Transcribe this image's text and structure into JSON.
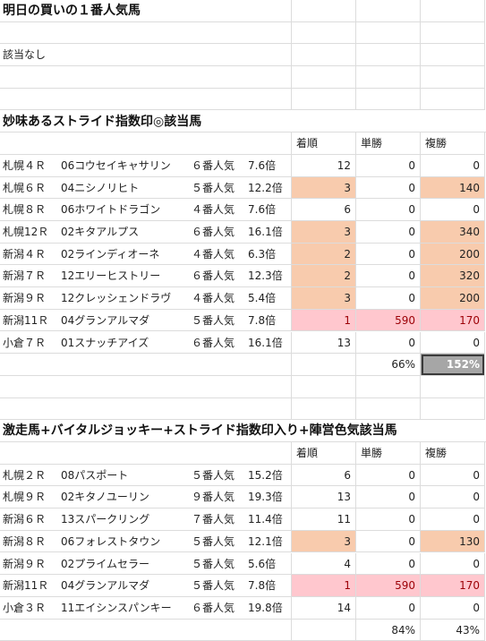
{
  "header": {
    "title": "明日の買いの１番人気馬",
    "no_match": "該当なし"
  },
  "section1": {
    "title": "妙味あるストライド指数印◎該当馬",
    "columns": [
      "着順",
      "単勝",
      "複勝"
    ],
    "rows": [
      {
        "venue": "札幌４Ｒ",
        "horse": "06コウセイキャサリン",
        "pop": "６番人気",
        "odds": "7.6倍",
        "rank": "12",
        "win": "0",
        "place": "0",
        "hl": [
          "",
          "",
          ""
        ]
      },
      {
        "venue": "札幌６Ｒ",
        "horse": "04ニシノリヒト",
        "pop": "５番人気",
        "odds": "12.2倍",
        "rank": "3",
        "win": "0",
        "place": "140",
        "hl": [
          "orange",
          "",
          "orange"
        ]
      },
      {
        "venue": "札幌８Ｒ",
        "horse": "06ホワイトドラゴン",
        "pop": "４番人気",
        "odds": "7.6倍",
        "rank": "6",
        "win": "0",
        "place": "0",
        "hl": [
          "",
          "",
          ""
        ]
      },
      {
        "venue": "札幌12Ｒ",
        "horse": "02キタアルプス",
        "pop": "６番人気",
        "odds": "16.1倍",
        "rank": "3",
        "win": "0",
        "place": "340",
        "hl": [
          "orange",
          "",
          "orange"
        ]
      },
      {
        "venue": "新潟４Ｒ",
        "horse": "02ラインディオーネ",
        "pop": "４番人気",
        "odds": "6.3倍",
        "rank": "2",
        "win": "0",
        "place": "200",
        "hl": [
          "orange",
          "",
          "orange"
        ]
      },
      {
        "venue": "新潟７Ｒ",
        "horse": "12エリーヒストリー",
        "pop": "６番人気",
        "odds": "12.3倍",
        "rank": "2",
        "win": "0",
        "place": "320",
        "hl": [
          "orange",
          "",
          "orange"
        ]
      },
      {
        "venue": "新潟９Ｒ",
        "horse": "12クレッシェンドラヴ",
        "pop": "４番人気",
        "odds": "5.4倍",
        "rank": "3",
        "win": "0",
        "place": "200",
        "hl": [
          "orange",
          "",
          "orange"
        ]
      },
      {
        "venue": "新潟11Ｒ",
        "horse": "04グランアルマダ",
        "pop": "５番人気",
        "odds": "7.8倍",
        "rank": "1",
        "win": "590",
        "place": "170",
        "hl": [
          "pink",
          "pink",
          "pink"
        ]
      },
      {
        "venue": "小倉７Ｒ",
        "horse": "01スナッチアイズ",
        "pop": "６番人気",
        "odds": "16.1倍",
        "rank": "13",
        "win": "0",
        "place": "0",
        "hl": [
          "",
          "",
          ""
        ]
      }
    ],
    "totals": {
      "win": "66%",
      "place": "152%"
    }
  },
  "section2": {
    "title": "激走馬+バイタルジョッキー+ストライド指数印入り+陣営色気該当馬",
    "columns": [
      "着順",
      "単勝",
      "複勝"
    ],
    "rows": [
      {
        "venue": "札幌２Ｒ",
        "horse": "08パスポート",
        "pop": "５番人気",
        "odds": "15.2倍",
        "rank": "6",
        "win": "0",
        "place": "0",
        "hl": [
          "",
          "",
          ""
        ]
      },
      {
        "venue": "札幌９Ｒ",
        "horse": "02キタノユーリン",
        "pop": "９番人気",
        "odds": "19.3倍",
        "rank": "13",
        "win": "0",
        "place": "0",
        "hl": [
          "",
          "",
          ""
        ]
      },
      {
        "venue": "新潟６Ｒ",
        "horse": "13スパークリング",
        "pop": "７番人気",
        "odds": "11.4倍",
        "rank": "11",
        "win": "0",
        "place": "0",
        "hl": [
          "",
          "",
          ""
        ]
      },
      {
        "venue": "新潟８Ｒ",
        "horse": "06フォレストタウン",
        "pop": "５番人気",
        "odds": "12.1倍",
        "rank": "3",
        "win": "0",
        "place": "130",
        "hl": [
          "orange",
          "",
          "orange"
        ]
      },
      {
        "venue": "新潟９Ｒ",
        "horse": "02プライムセラー",
        "pop": "５番人気",
        "odds": "5.6倍",
        "rank": "4",
        "win": "0",
        "place": "0",
        "hl": [
          "",
          "",
          ""
        ]
      },
      {
        "venue": "新潟11Ｒ",
        "horse": "04グランアルマダ",
        "pop": "５番人気",
        "odds": "7.8倍",
        "rank": "1",
        "win": "590",
        "place": "170",
        "hl": [
          "pink",
          "pink",
          "pink"
        ]
      },
      {
        "venue": "小倉３Ｒ",
        "horse": "11エイシンスパンキー",
        "pop": "６番人気",
        "odds": "19.8倍",
        "rank": "14",
        "win": "0",
        "place": "0",
        "hl": [
          "",
          "",
          ""
        ]
      }
    ],
    "totals": {
      "win": "84%",
      "place": "43%"
    }
  }
}
